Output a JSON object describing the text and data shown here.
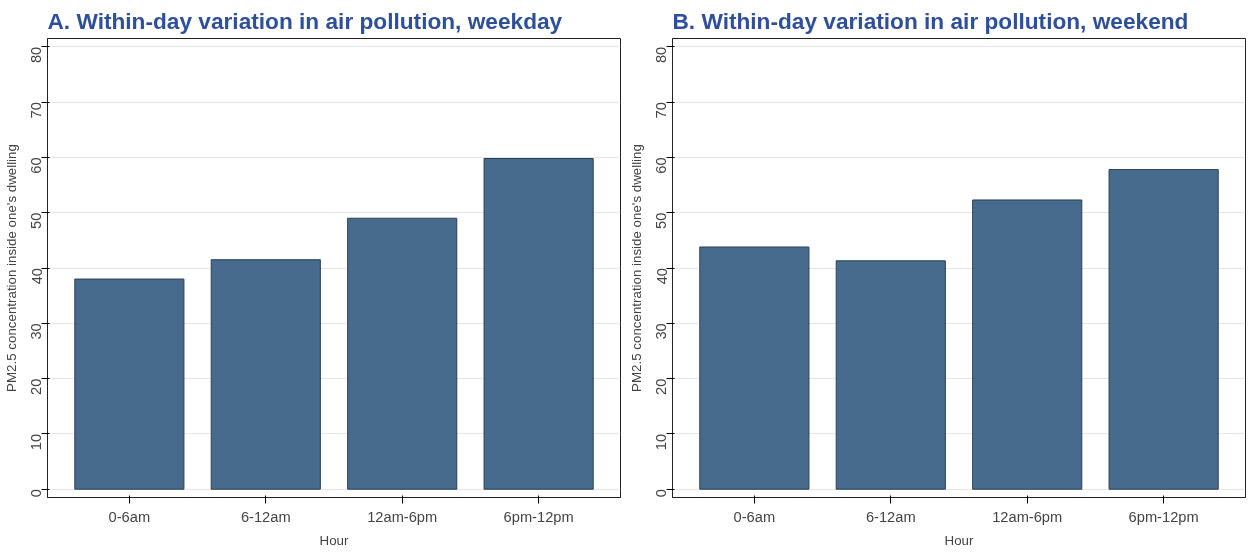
{
  "chart_data": [
    {
      "type": "bar",
      "title": "A.  Within-day variation in air pollution, weekday",
      "xlabel": "Hour",
      "ylabel": "PM2.5 concentration inside one's dwelling",
      "categories": [
        "0-6am",
        "6-12am",
        "12am-6pm",
        "6pm-12pm"
      ],
      "values": [
        38.0,
        41.5,
        49.0,
        59.8
      ],
      "color": "#476b8c",
      "ylim": [
        -1.5,
        81.5
      ],
      "yticks": [
        0,
        10,
        20,
        30,
        40,
        50,
        60,
        70,
        80
      ],
      "grid": "y"
    },
    {
      "type": "bar",
      "title": "B. Within-day variation in air pollution, weekend",
      "xlabel": "Hour",
      "ylabel": "PM2.5 concentration inside one's dwelling",
      "categories": [
        "0-6am",
        "6-12am",
        "12am-6pm",
        "6pm-12pm"
      ],
      "values": [
        43.8,
        41.3,
        52.3,
        57.8
      ],
      "color": "#476b8c",
      "ylim": [
        -1.5,
        81.5
      ],
      "yticks": [
        0,
        10,
        20,
        30,
        40,
        50,
        60,
        70,
        80
      ],
      "grid": "y"
    }
  ]
}
